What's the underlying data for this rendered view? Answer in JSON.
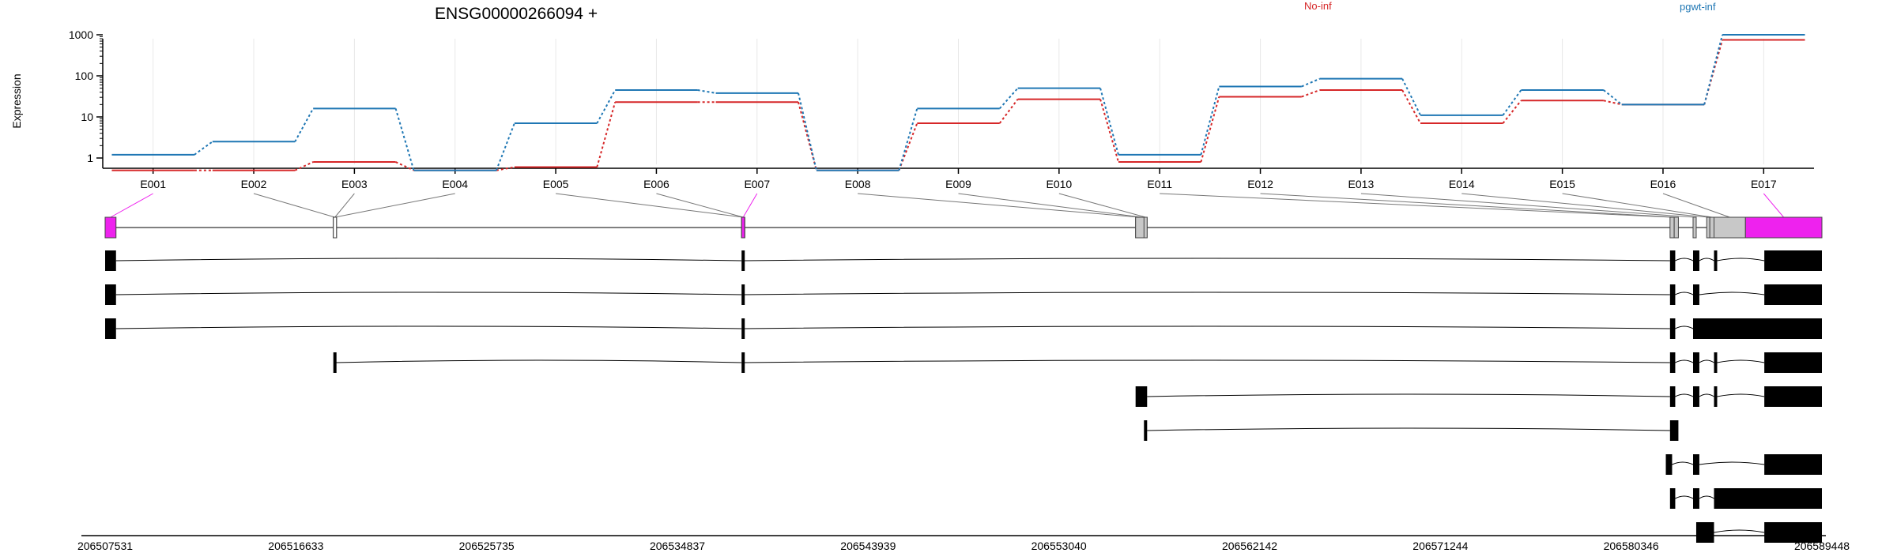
{
  "chart_data": {
    "type": "line",
    "title": "ENSG00000266094 +",
    "ylabel": "Expression",
    "y_scale": "log",
    "y_ticks": [
      1,
      10,
      100,
      1000
    ],
    "y_tick_labels": [
      "1",
      "10",
      "100",
      "1000"
    ],
    "categories": [
      "E001",
      "E002",
      "E003",
      "E004",
      "E005",
      "E006",
      "E007",
      "E008",
      "E009",
      "E010",
      "E011",
      "E012",
      "E013",
      "E014",
      "E015",
      "E016",
      "E017"
    ],
    "series": [
      {
        "name": "No-inf",
        "color": "#d62728",
        "values": [
          0.5,
          0.5,
          0.8,
          0.5,
          0.6,
          23,
          23,
          0.5,
          7,
          27,
          0.8,
          31,
          45,
          7,
          25,
          20,
          750
        ]
      },
      {
        "name": "pgwt-inf",
        "color": "#1f77b4",
        "values": [
          1.2,
          2.5,
          16,
          0.5,
          7,
          45,
          38,
          0.5,
          16,
          50,
          1.2,
          55,
          85,
          11,
          45,
          20,
          1000
        ]
      }
    ],
    "genomic_axis": {
      "ticks": [
        206507531,
        206516633,
        206525735,
        206534837,
        206543939,
        206553040,
        206562142,
        206571244,
        206580346,
        206589448
      ],
      "tick_labels": [
        "206507531",
        "206516633",
        "206525735",
        "206534837",
        "206543939",
        "206553040",
        "206562142",
        "206571244",
        "206580346",
        "206589448"
      ]
    },
    "highlighted_exons": [
      "E001",
      "E007",
      "E017"
    ],
    "highlight_color": "#ee22ee",
    "transcript_count": 10
  }
}
